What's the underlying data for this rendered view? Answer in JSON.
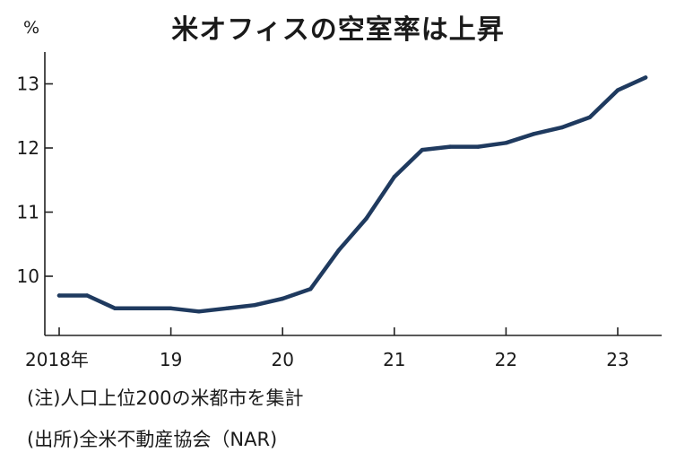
{
  "chart_data": {
    "type": "line",
    "title": "米オフィスの空室率は上昇",
    "ylabel": "%",
    "xlabel": "",
    "ylim": [
      9.1,
      13.5
    ],
    "yticks": [
      10,
      11,
      12,
      13
    ],
    "xlim": [
      2018.0,
      2023.35
    ],
    "xticks": [
      {
        "value": 2018,
        "label": "2018年"
      },
      {
        "value": 2019,
        "label": "19"
      },
      {
        "value": 2020,
        "label": "20"
      },
      {
        "value": 2021,
        "label": "21"
      },
      {
        "value": 2022,
        "label": "22"
      },
      {
        "value": 2023,
        "label": "23"
      }
    ],
    "grid": false,
    "series": [
      {
        "color": "#1f3a5f",
        "x": [
          2018.0,
          2018.25,
          2018.5,
          2018.75,
          2019.0,
          2019.25,
          2019.5,
          2019.75,
          2020.0,
          2020.25,
          2020.5,
          2020.75,
          2021.0,
          2021.25,
          2021.5,
          2021.75,
          2022.0,
          2022.25,
          2022.5,
          2022.75,
          2023.0,
          2023.25
        ],
        "y": [
          9.7,
          9.7,
          9.5,
          9.5,
          9.5,
          9.45,
          9.5,
          9.55,
          9.65,
          9.8,
          10.4,
          10.9,
          11.55,
          11.97,
          12.02,
          12.02,
          12.08,
          12.22,
          12.32,
          12.48,
          12.9,
          13.1
        ]
      }
    ]
  },
  "notes": {
    "line1": "(注)人口上位200の米都市を集計",
    "line2": "(出所)全米不動産協会（NAR)"
  }
}
